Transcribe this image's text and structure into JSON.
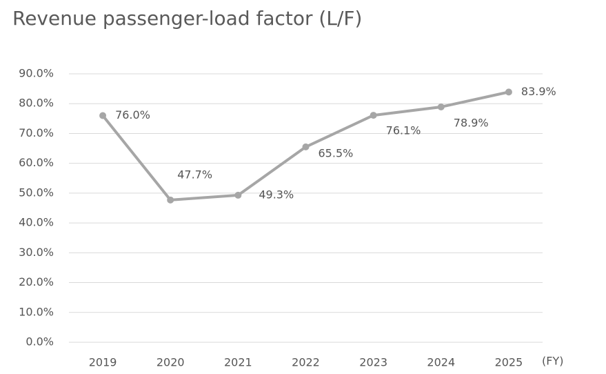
{
  "chart_data": {
    "type": "line",
    "title": "Revenue passenger-load factor (L/F)",
    "x_label": "(FY)",
    "categories": [
      "2019",
      "2020",
      "2021",
      "2022",
      "2023",
      "2024",
      "2025"
    ],
    "values": [
      76.0,
      47.7,
      49.3,
      65.5,
      76.1,
      78.9,
      83.9
    ],
    "value_labels": [
      "76.0%",
      "47.7%",
      "49.3%",
      "65.5%",
      "76.1%",
      "78.9%",
      "83.9%"
    ],
    "color": "#a6a6a6",
    "ylim": [
      0,
      90
    ],
    "yticks": [
      {
        "value": 0,
        "label": "0.0%"
      },
      {
        "value": 10,
        "label": "10.0%"
      },
      {
        "value": 20,
        "label": "20.0%"
      },
      {
        "value": 30,
        "label": "30.0%"
      },
      {
        "value": 40,
        "label": "40.0%"
      },
      {
        "value": 50,
        "label": "50.0%"
      },
      {
        "value": 60,
        "label": "60.0%"
      },
      {
        "value": 70,
        "label": "70.0%"
      },
      {
        "value": 80,
        "label": "80.0%"
      },
      {
        "value": 90,
        "label": "90.0%"
      }
    ],
    "grid": true
  }
}
